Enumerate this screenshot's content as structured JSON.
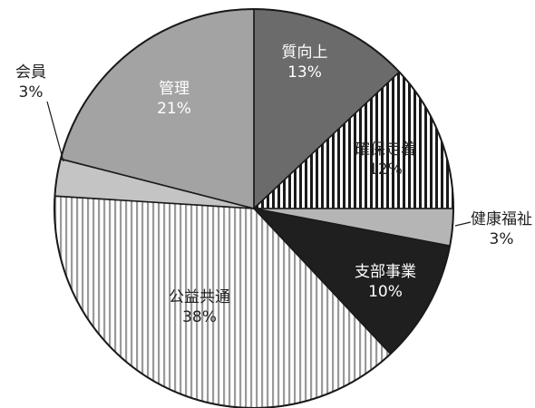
{
  "chart_data": {
    "type": "pie",
    "title": "",
    "start_angle_deg": 0,
    "direction": "clockwise",
    "slices": [
      {
        "label": "質向上",
        "value": 13,
        "value_label": "13%",
        "fill": "#6b6b6b",
        "pattern": "solid",
        "label_color": "#ffffff",
        "label_placement": "inside"
      },
      {
        "label": "確保定着",
        "value": 12,
        "value_label": "12%",
        "fill": "#ffffff",
        "pattern": "vertical-stripes-dark",
        "label_color": "#222222",
        "label_placement": "inside"
      },
      {
        "label": "健康福祉",
        "value": 3,
        "value_label": "3%",
        "fill": "#b5b5b5",
        "pattern": "solid",
        "label_color": "#222222",
        "label_placement": "outside"
      },
      {
        "label": "支部事業",
        "value": 10,
        "value_label": "10%",
        "fill": "#1f1f1f",
        "pattern": "solid",
        "label_color": "#ffffff",
        "label_placement": "inside"
      },
      {
        "label": "公益共通",
        "value": 38,
        "value_label": "38%",
        "fill": "#ffffff",
        "pattern": "vertical-stripes-light",
        "label_color": "#222222",
        "label_placement": "inside"
      },
      {
        "label": "会員",
        "value": 3,
        "value_label": "3%",
        "fill": "#c4c4c4",
        "pattern": "solid",
        "label_color": "#222222",
        "label_placement": "outside"
      },
      {
        "label": "管理",
        "value": 21,
        "value_label": "21%",
        "fill": "#a3a3a3",
        "pattern": "solid",
        "label_color": "#ffffff",
        "label_placement": "inside"
      }
    ]
  }
}
